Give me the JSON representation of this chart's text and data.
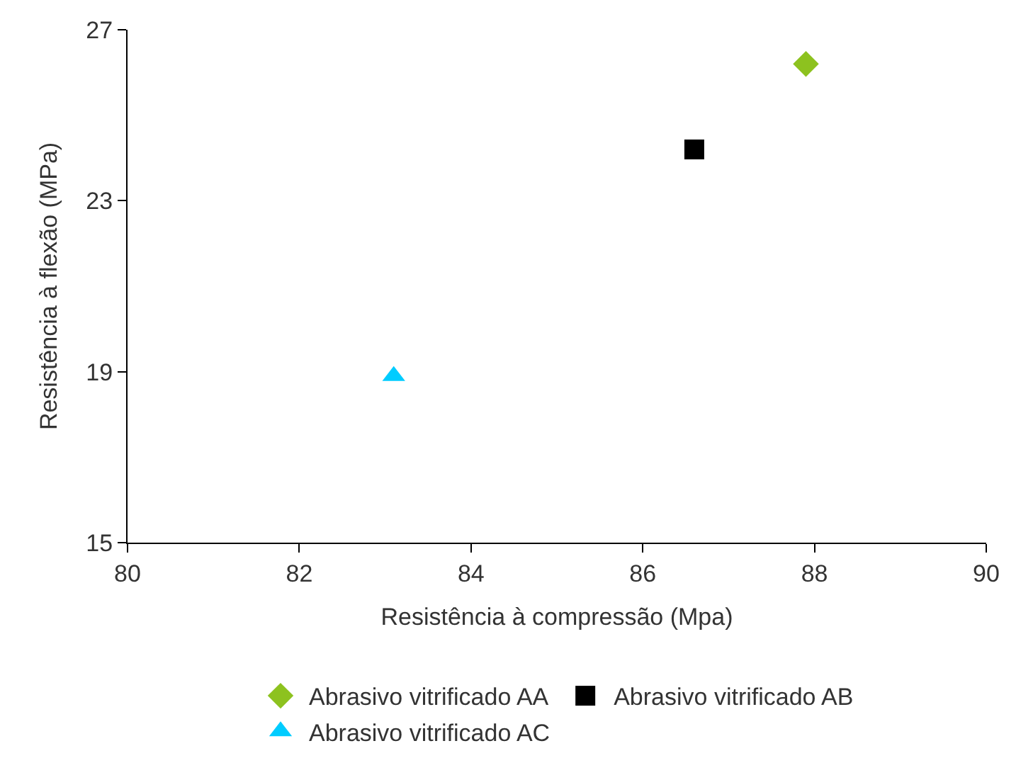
{
  "chart_data": {
    "type": "scatter",
    "xlabel": "Resistência à compressão (Mpa)",
    "ylabel": "Resistência à flexão (MPa)",
    "xlim": [
      80,
      90
    ],
    "xticks": [
      80,
      82,
      84,
      86,
      88,
      90
    ],
    "ylim": [
      15,
      27
    ],
    "yticks": [
      15,
      19,
      23,
      27
    ],
    "legend": "bottom",
    "series": [
      {
        "name": "Abrasivo vitrificado AA",
        "color": "#8dc21f",
        "marker": "diamond",
        "x": [
          87.9
        ],
        "values": [
          26.2
        ]
      },
      {
        "name": "Abrasivo vitrificado AB",
        "color": "#000000",
        "marker": "square",
        "x": [
          86.6
        ],
        "values": [
          24.2
        ]
      },
      {
        "name": "Abrasivo vitrificado AC",
        "color": "#00ccff",
        "marker": "triangle",
        "x": [
          83.1
        ],
        "values": [
          18.9
        ]
      }
    ]
  }
}
